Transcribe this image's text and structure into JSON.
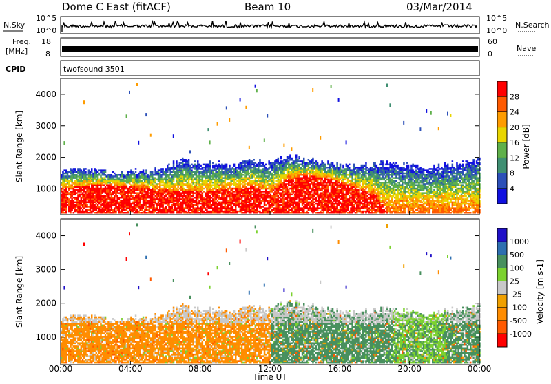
{
  "header": {
    "station": "Dome C East (fitACF)",
    "beam": "Beam 10",
    "date": "03/Mar/2014"
  },
  "top_panels": {
    "nsky_label": "N.Sky",
    "nsearch_label": "N.Search",
    "exp_left_hi": "10^5",
    "exp_left_lo": "10^0",
    "exp_right_hi": "10^5",
    "exp_right_lo": "10^0",
    "freq_label": "Freq.",
    "freq_unit": "[MHz]",
    "freq_hi": "18",
    "freq_lo": "8",
    "nave_label": "Nave",
    "nave_hi": "60",
    "nave_lo": "0",
    "cpid_label": "CPID",
    "cpid_value": "twofsound 3501"
  },
  "x_axis": {
    "label": "Time UT",
    "ticks": [
      "00:00",
      "04:00",
      "08:00",
      "12:00",
      "16:00",
      "20:00",
      "00:00"
    ]
  },
  "colors": {
    "power": [
      "#1010e0",
      "#2c50b8",
      "#3f8f72",
      "#5fb04a",
      "#e8d500",
      "#ff9c00",
      "#ff5a00",
      "#ff0000"
    ],
    "velocity": [
      "#ff0000",
      "#ff5a00",
      "#ff8c00",
      "#f0a000",
      "#c8c8c8",
      "#7cd22f",
      "#48905e",
      "#2e6fb0",
      "#2010c8"
    ]
  },
  "chart_data": [
    {
      "type": "heatmap",
      "title": "Power",
      "ylabel": "Slant Range [km]",
      "xlabel": "",
      "ylim": [
        180,
        4500
      ],
      "yticks": [
        "1000",
        "2000",
        "3000",
        "4000"
      ],
      "colorbar": {
        "label": "Power [dB]",
        "ticks": [
          "4",
          "8",
          "12",
          "16",
          "20",
          "24",
          "28"
        ],
        "range": [
          0,
          32
        ]
      },
      "profile": {
        "hours": [
          0,
          1,
          2,
          3,
          4,
          5,
          6,
          7,
          8,
          9,
          10,
          11,
          12,
          13,
          14,
          15,
          16,
          17,
          18,
          19,
          20,
          21,
          22,
          23,
          24
        ],
        "core_top_km": [
          1000,
          1050,
          1100,
          1080,
          1050,
          1000,
          950,
          900,
          900,
          950,
          1000,
          1050,
          900,
          1300,
          1400,
          1350,
          1200,
          1000,
          800,
          0,
          0,
          0,
          0,
          0,
          0
        ],
        "echo_top_km": [
          1500,
          1600,
          1550,
          1500,
          1550,
          1500,
          1700,
          1900,
          1750,
          1800,
          1700,
          1900,
          1800,
          2000,
          1900,
          1800,
          1750,
          1700,
          1750,
          1800,
          1700,
          1600,
          1750,
          1800,
          1900
        ]
      }
    },
    {
      "type": "heatmap",
      "title": "Velocity",
      "ylabel": "Slant Range [km]",
      "xlabel": "Time UT",
      "ylim": [
        180,
        4500
      ],
      "yticks": [
        "1000",
        "2000",
        "3000",
        "4000"
      ],
      "colorbar": {
        "label": "Velocity [m s-1]",
        "ticks": [
          "-1000",
          "-500",
          "-100",
          "-25",
          "25",
          "100",
          "500",
          "1000"
        ]
      },
      "profile": {
        "hours": [
          0,
          1,
          2,
          3,
          4,
          5,
          6,
          7,
          8,
          9,
          10,
          11,
          12,
          13,
          14,
          15,
          16,
          17,
          18,
          19,
          20,
          21,
          22,
          23,
          24
        ],
        "dominant_velocity": [
          -100,
          -100,
          -100,
          -100,
          -100,
          -100,
          -25,
          -100,
          -100,
          -100,
          -100,
          -100,
          100,
          100,
          100,
          100,
          100,
          25,
          100,
          100,
          25,
          100,
          100,
          100,
          100
        ]
      }
    }
  ]
}
